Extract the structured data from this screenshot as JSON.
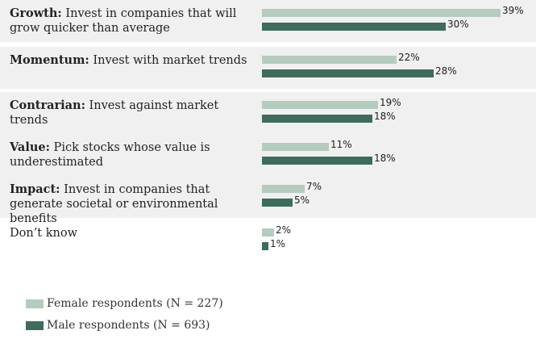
{
  "colors": {
    "female": "#b5cbbe",
    "male": "#3e6b5c",
    "row_shade": "#f0f0f0"
  },
  "legend": {
    "female": "Female respondents (N = 227)",
    "male": "Male respondents (N = 693)"
  },
  "chart_data": {
    "type": "bar",
    "orientation": "horizontal",
    "categories": [
      {
        "bold": "Growth:",
        "text": " Invest in companies that will grow quicker than average"
      },
      {
        "bold": "Momentum:",
        "text": " Invest with market trends"
      },
      {
        "bold": "Contrarian:",
        "text": " Invest against market trends"
      },
      {
        "bold": "Value:",
        "text": " Pick stocks whose value is underestimated"
      },
      {
        "bold": "Impact:",
        "text": " Invest in companies that generate societal or environmental benefits"
      },
      {
        "bold": "",
        "text": "Don’t know"
      }
    ],
    "series": [
      {
        "name": "Female respondents (N = 227)",
        "values": [
          39,
          22,
          19,
          11,
          7,
          2
        ]
      },
      {
        "name": "Male respondents (N = 693)",
        "values": [
          30,
          28,
          18,
          18,
          5,
          1
        ]
      }
    ],
    "value_suffix": "%",
    "xlim": [
      0,
      39
    ],
    "legend_position": "bottom-left",
    "grid": false
  }
}
